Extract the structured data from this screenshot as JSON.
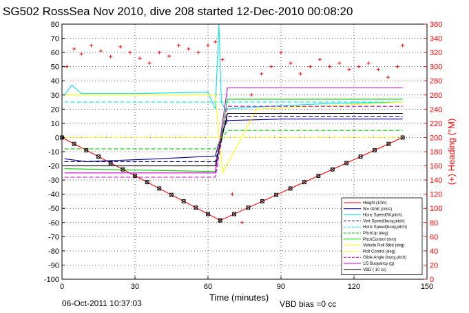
{
  "chart_data": {
    "type": "line",
    "title": "SG502 RossSea Nov 2010, dive 208 started 12-Dec-2010 00:08:20",
    "xlabel": "Time (minutes)",
    "ylabel_right": "(+) Heading (°M)",
    "xlim": [
      0,
      150
    ],
    "ylim": [
      -100,
      80
    ],
    "ylim_right": [
      0,
      360
    ],
    "x_ticks": [
      0,
      30,
      60,
      90,
      120,
      150
    ],
    "y_ticks": [
      80,
      70,
      60,
      50,
      40,
      30,
      20,
      10,
      0,
      -10,
      -20,
      -30,
      -40,
      -50,
      -60,
      -70,
      -80,
      -90,
      -100
    ],
    "y_right_ticks": [
      360,
      340,
      320,
      300,
      280,
      260,
      240,
      220,
      200,
      180,
      160,
      140,
      120,
      100,
      80,
      60,
      40,
      20,
      0
    ],
    "grid": true,
    "legend_position": "bottom-right",
    "footer_left": "06-Oct-2011 10:37:03",
    "footer_center": "VBD bias =0 cc",
    "series": [
      {
        "name": "Height (10m)",
        "color": "#ff0000",
        "style": "solid",
        "x": [
          0,
          65,
          140
        ],
        "y": [
          0,
          -58.5,
          0
        ]
      },
      {
        "name": "W= dz/dt (cm/s)",
        "color": "#00008b",
        "style": "solid",
        "x": [
          1,
          10,
          40,
          63,
          66,
          68,
          90,
          140
        ],
        "y": [
          -15,
          -17,
          -15,
          -13,
          5,
          12,
          13,
          13
        ]
      },
      {
        "name": "Horiz Speed(W,pitch)",
        "color": "#00e5e5",
        "style": "solid",
        "x": [
          1,
          4,
          8,
          30,
          60,
          63,
          64.5,
          65.5,
          67,
          85,
          110,
          140
        ],
        "y": [
          30,
          37,
          31,
          31,
          32,
          20,
          80,
          25,
          20,
          22,
          24,
          25
        ]
      },
      {
        "name": "Vert Speed(buoy,pitch)",
        "color": "#00008b",
        "style": "dashed",
        "x": [
          1,
          63,
          68,
          140
        ],
        "y": [
          -17,
          -17,
          15,
          15
        ]
      },
      {
        "name": "Horiz Speed(buoy,pitch)",
        "color": "#00e5e5",
        "style": "dashed",
        "x": [
          1,
          63,
          68,
          140
        ],
        "y": [
          25,
          25,
          25,
          25
        ]
      },
      {
        "name": "PitchUp (deg)",
        "color": "#00cc00",
        "style": "dashed",
        "x": [
          1,
          63,
          68,
          140
        ],
        "y": [
          -8,
          -8,
          5,
          5
        ]
      },
      {
        "name": "PitchControl (mm)",
        "color": "#00cc00",
        "style": "solid",
        "x": [
          1,
          63,
          68,
          140
        ],
        "y": [
          -22,
          -24,
          27,
          27
        ]
      },
      {
        "name": "Vehicle Roll 5tbd (deg)",
        "color": "#ffff00",
        "style": "solid",
        "x": [
          1,
          63,
          66,
          80,
          140
        ],
        "y": [
          30,
          30,
          -25,
          20,
          25
        ]
      },
      {
        "name": "Roll Control (deg)",
        "color": "#ffff00",
        "style": "dashed",
        "x": [
          1,
          63,
          68,
          140
        ],
        "y": [
          0,
          0,
          0,
          0
        ]
      },
      {
        "name": "Glide Angle (buoy,pitch)",
        "color": "#cc00cc",
        "style": "dashed",
        "x": [
          1,
          63,
          68,
          140
        ],
        "y": [
          -28,
          -28,
          22,
          22
        ]
      },
      {
        "name": "1/5 Buoyancy (g)",
        "color": "#cc00cc",
        "style": "solid",
        "x": [
          1,
          63,
          68,
          140
        ],
        "y": [
          -25,
          -25,
          35,
          35
        ]
      },
      {
        "name": "VBD ( 10 cc)",
        "color": "#000000",
        "style": "solid",
        "x": [
          1,
          63,
          68,
          140
        ],
        "y": [
          -20,
          -20,
          17,
          17
        ]
      },
      {
        "name": "Heading",
        "color": "#ff0000",
        "style": "markers",
        "axis": "right",
        "x": [
          2,
          5,
          8,
          12,
          16,
          20,
          24,
          28,
          32,
          36,
          40,
          44,
          48,
          52,
          56,
          60,
          63,
          66,
          70,
          74,
          78,
          82,
          86,
          90,
          94,
          98,
          102,
          106,
          110,
          114,
          118,
          122,
          126,
          130,
          134,
          138,
          140
        ],
        "y": [
          300,
          325,
          318,
          330,
          322,
          314,
          328,
          320,
          312,
          305,
          320,
          315,
          330,
          325,
          320,
          330,
          335,
          310,
          120,
          80,
          260,
          290,
          300,
          320,
          305,
          290,
          300,
          310,
          300,
          305,
          296,
          300,
          305,
          296,
          285,
          300,
          330
        ]
      }
    ]
  }
}
